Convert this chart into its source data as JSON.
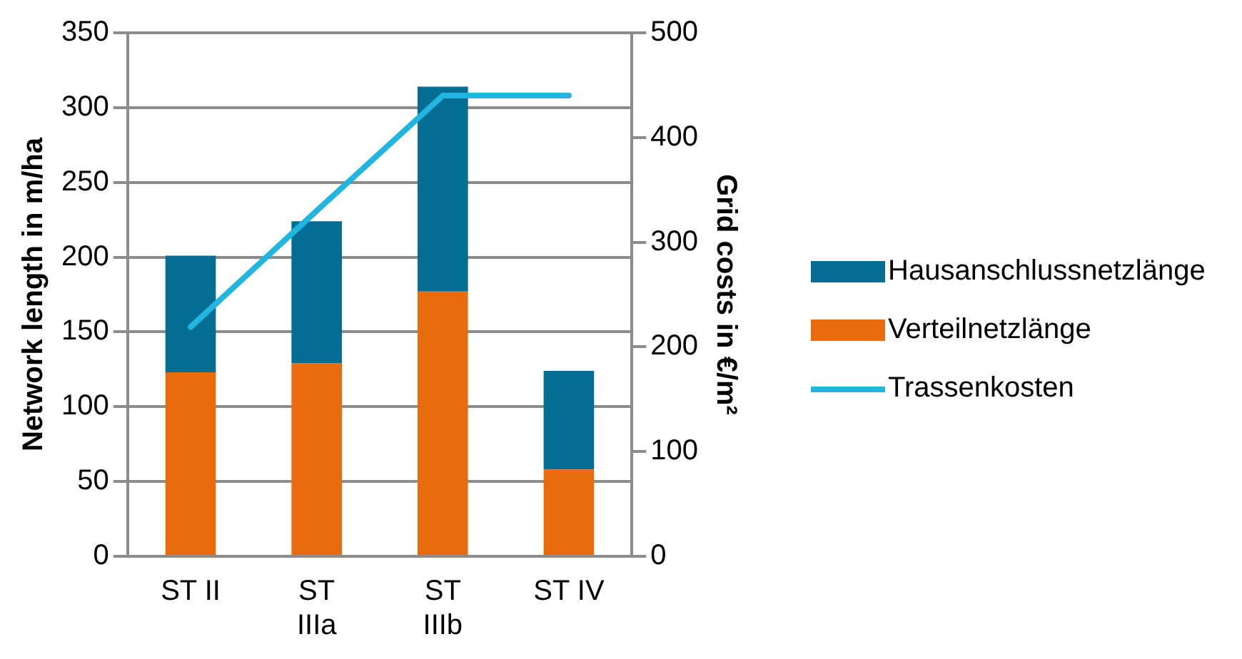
{
  "chart_data": {
    "type": "bar",
    "categories": [
      "ST II",
      "ST IIIa",
      "ST IIIb",
      "ST IV"
    ],
    "stacked": true,
    "ylabel": "Network length in m/ha",
    "y2label": "Grid costs in €/m²",
    "ylim": [
      0,
      350
    ],
    "yticks": [
      0,
      50,
      100,
      150,
      200,
      250,
      300,
      350
    ],
    "y2lim": [
      0,
      500
    ],
    "y2ticks": [
      0,
      100,
      200,
      300,
      400,
      500
    ],
    "grid": "y",
    "legend": "right",
    "series": [
      {
        "name": "Verteilnetzlänge",
        "color": "#e86c0d",
        "values": [
          123,
          129,
          177,
          58
        ]
      },
      {
        "name": "Hausanschlussnetzlänge",
        "color": "#036d94",
        "values": [
          78,
          95,
          137,
          66
        ]
      },
      {
        "name": "Trassenkosten",
        "type": "line",
        "axis": "y2",
        "color": "#22b5e0",
        "values": [
          219,
          330,
          440,
          440
        ]
      }
    ]
  }
}
